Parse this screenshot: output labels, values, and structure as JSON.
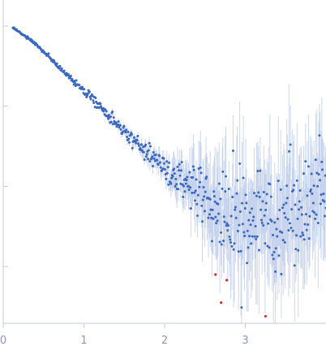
{
  "chart_data": {
    "type": "scatter",
    "title": "",
    "xlabel": "",
    "ylabel": "",
    "xlim": [
      0,
      4.0
    ],
    "ylim": [
      -4.7,
      -1.0
    ],
    "x_ticks": [
      0,
      1,
      2,
      3
    ],
    "x_tick_labels": [
      "0",
      "1",
      "2",
      "3"
    ],
    "y_ticks": [
      -1,
      -2,
      -3,
      -4
    ],
    "y_tick_labels": [
      "",
      "",
      "",
      ""
    ],
    "grid": false,
    "legend": "none",
    "colors": {
      "points": "#3a68c0",
      "error_bars": "#b9c9ea",
      "outliers": "#d03030",
      "axis": "#c6cbdb",
      "tick_label": "#8c98b8"
    },
    "series": [
      {
        "kind": "measured",
        "trend": {
          "x": [
            0.12,
            0.4,
            0.8,
            1.2,
            1.6,
            2.0,
            2.3,
            2.6,
            3.0,
            3.4,
            3.8,
            4.0
          ],
          "y": [
            -1.02,
            -1.22,
            -1.62,
            -2.0,
            -2.42,
            -2.75,
            -3.05,
            -3.3,
            -3.45,
            -3.38,
            -3.15,
            -3.2
          ]
        },
        "scatter_sd": [
          0.005,
          0.01,
          0.015,
          0.03,
          0.05,
          0.08,
          0.15,
          0.25,
          0.3,
          0.32,
          0.3,
          0.3
        ],
        "error_bar_sd": [
          0.003,
          0.005,
          0.008,
          0.02,
          0.05,
          0.1,
          0.25,
          0.45,
          0.55,
          0.6,
          0.55,
          0.6
        ],
        "n_points": 520
      },
      {
        "kind": "excluded",
        "x": [
          2.63,
          2.7,
          2.77,
          3.25
        ],
        "y": [
          -4.1,
          -4.45,
          -4.17,
          -4.62
        ]
      }
    ]
  }
}
